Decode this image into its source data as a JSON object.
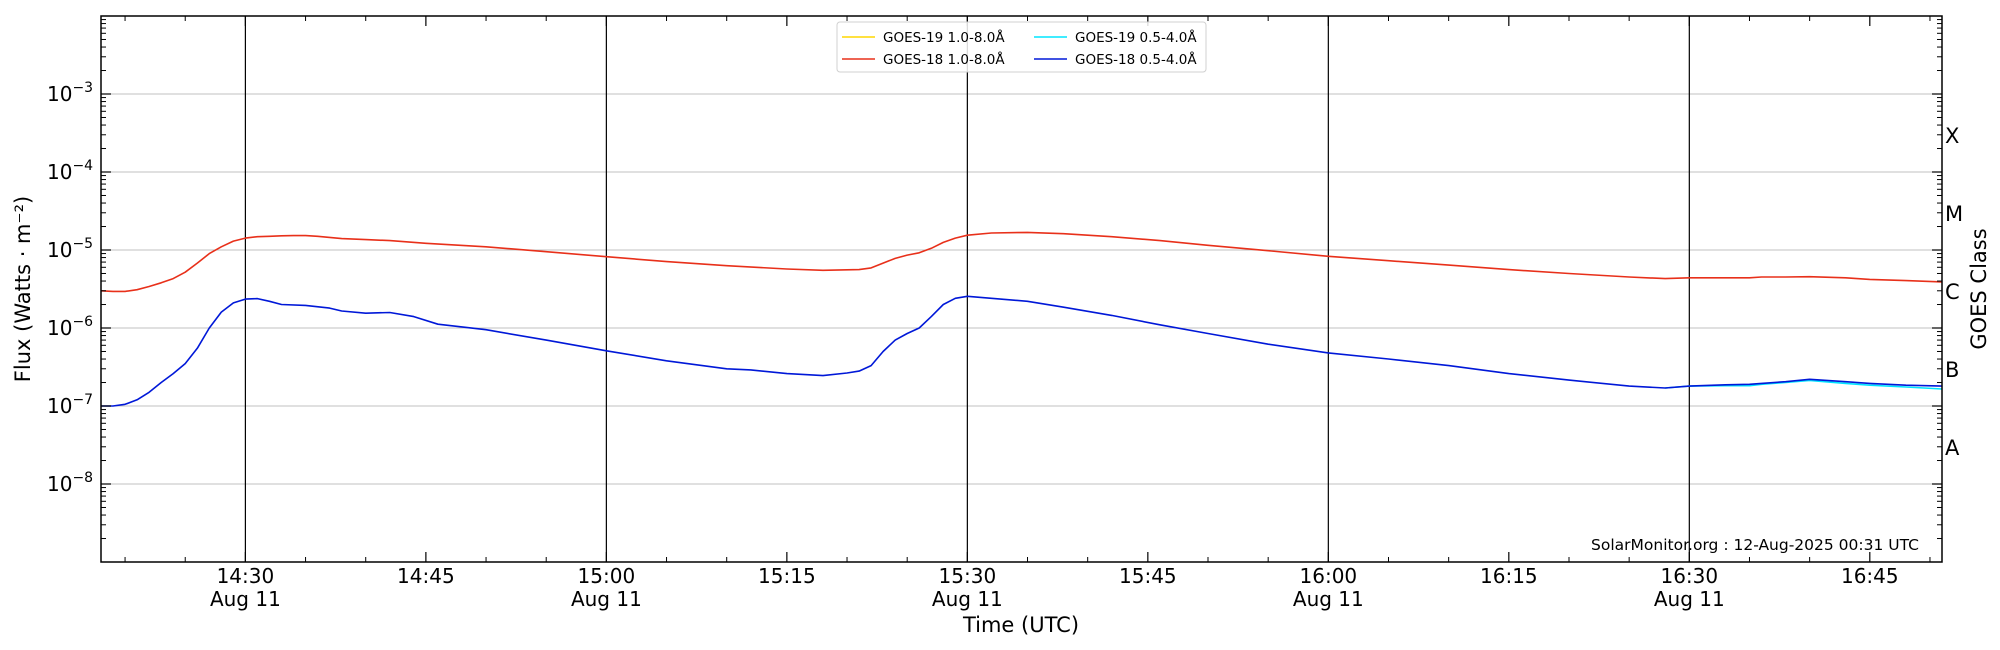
{
  "chart_data": {
    "type": "line",
    "xlabel": "Time (UTC)",
    "ylabel": "Flux (Watts · m⁻²)",
    "right_axis_label": "GOES Class",
    "y_scale": "log",
    "ylim": [
      1e-09,
      0.01
    ],
    "xlim": [
      "14:18",
      "16:51"
    ],
    "y_ticks": [
      {
        "value": 1e-08,
        "base": "10",
        "exp": "−8"
      },
      {
        "value": 1e-07,
        "base": "10",
        "exp": "−7"
      },
      {
        "value": 1e-06,
        "base": "10",
        "exp": "−6"
      },
      {
        "value": 1e-05,
        "base": "10",
        "exp": "−5"
      },
      {
        "value": 0.0001,
        "base": "10",
        "exp": "−4"
      },
      {
        "value": 0.001,
        "base": "10",
        "exp": "−3"
      }
    ],
    "x_ticks": [
      {
        "time": "14:30",
        "label": "14:30",
        "date": "Aug 11"
      },
      {
        "time": "14:45",
        "label": "14:45",
        "date": ""
      },
      {
        "time": "15:00",
        "label": "15:00",
        "date": "Aug 11"
      },
      {
        "time": "15:15",
        "label": "15:15",
        "date": ""
      },
      {
        "time": "15:30",
        "label": "15:30",
        "date": "Aug 11"
      },
      {
        "time": "15:45",
        "label": "15:45",
        "date": ""
      },
      {
        "time": "16:00",
        "label": "16:00",
        "date": "Aug 11"
      },
      {
        "time": "16:15",
        "label": "16:15",
        "date": ""
      },
      {
        "time": "16:30",
        "label": "16:30",
        "date": "Aug 11"
      },
      {
        "time": "16:45",
        "label": "16:45",
        "date": ""
      }
    ],
    "vertical_lines": [
      "14:30",
      "15:00",
      "15:30",
      "16:00",
      "16:30"
    ],
    "goes_classes": [
      {
        "label": "A",
        "flux": 3e-08
      },
      {
        "label": "B",
        "flux": 3e-07
      },
      {
        "label": "C",
        "flux": 3e-06
      },
      {
        "label": "M",
        "flux": 3e-05
      },
      {
        "label": "X",
        "flux": 0.0003
      }
    ],
    "legend": {
      "placement": "top-center",
      "columns": 2
    },
    "credit": "SolarMonitor.org : 12-Aug-2025 00:31 UTC",
    "series": [
      {
        "name": "GOES-19 1.0-8.0Å",
        "color": "#ffd700",
        "x": [
          "14:18",
          "16:51"
        ],
        "values": [
          null,
          null
        ]
      },
      {
        "name": "GOES-18 1.0-8.0Å",
        "color": "#e8301a",
        "x": [
          "14:18",
          "14:19",
          "14:20",
          "14:21",
          "14:22",
          "14:23",
          "14:24",
          "14:25",
          "14:26",
          "14:27",
          "14:28",
          "14:29",
          "14:30",
          "14:31",
          "14:32",
          "14:33",
          "14:34",
          "14:35",
          "14:36",
          "14:37",
          "14:38",
          "14:40",
          "14:42",
          "14:45",
          "14:50",
          "14:55",
          "15:00",
          "15:05",
          "15:10",
          "15:15",
          "15:18",
          "15:21",
          "15:22",
          "15:23",
          "15:24",
          "15:25",
          "15:26",
          "15:27",
          "15:28",
          "15:29",
          "15:30",
          "15:32",
          "15:35",
          "15:38",
          "15:42",
          "15:46",
          "15:50",
          "15:55",
          "16:00",
          "16:05",
          "16:10",
          "16:15",
          "16:20",
          "16:25",
          "16:28",
          "16:30",
          "16:33",
          "16:35",
          "16:36",
          "16:38",
          "16:40",
          "16:43",
          "16:45",
          "16:48",
          "16:51"
        ],
        "values": [
          3e-06,
          2.95e-06,
          2.95e-06,
          3.1e-06,
          3.4e-06,
          3.8e-06,
          4.3e-06,
          5.2e-06,
          6.8e-06,
          9e-06,
          1.1e-05,
          1.3e-05,
          1.42e-05,
          1.48e-05,
          1.5e-05,
          1.52e-05,
          1.53e-05,
          1.53e-05,
          1.5e-05,
          1.45e-05,
          1.4e-05,
          1.36e-05,
          1.32e-05,
          1.22e-05,
          1.1e-05,
          9.5e-06,
          8.2e-06,
          7.1e-06,
          6.3e-06,
          5.7e-06,
          5.5e-06,
          5.6e-06,
          5.9e-06,
          6.8e-06,
          7.8e-06,
          8.6e-06,
          9.2e-06,
          1.05e-05,
          1.25e-05,
          1.42e-05,
          1.55e-05,
          1.65e-05,
          1.68e-05,
          1.62e-05,
          1.48e-05,
          1.32e-05,
          1.15e-05,
          9.8e-06,
          8.3e-06,
          7.3e-06,
          6.4e-06,
          5.6e-06,
          5e-06,
          4.5e-06,
          4.3e-06,
          4.4e-06,
          4.4e-06,
          4.4e-06,
          4.5e-06,
          4.5e-06,
          4.55e-06,
          4.4e-06,
          4.2e-06,
          4.05e-06,
          3.9e-06
        ]
      },
      {
        "name": "GOES-19 0.5-4.0Å",
        "color": "#00e5ff",
        "x": [
          "16:28",
          "16:30",
          "16:33",
          "16:35",
          "16:36",
          "16:38",
          "16:40",
          "16:43",
          "16:45",
          "16:48",
          "16:51"
        ],
        "values": [
          1.7e-07,
          1.8e-07,
          1.82e-07,
          1.82e-07,
          1.9e-07,
          2e-07,
          2.12e-07,
          1.95e-07,
          1.85e-07,
          1.75e-07,
          1.65e-07
        ]
      },
      {
        "name": "GOES-18 0.5-4.0Å",
        "color": "#0018d8",
        "x": [
          "14:18",
          "14:19",
          "14:20",
          "14:21",
          "14:22",
          "14:23",
          "14:24",
          "14:25",
          "14:26",
          "14:27",
          "14:28",
          "14:29",
          "14:30",
          "14:31",
          "14:32",
          "14:33",
          "14:35",
          "14:37",
          "14:38",
          "14:40",
          "14:42",
          "14:44",
          "14:46",
          "14:50",
          "14:55",
          "15:00",
          "15:05",
          "15:10",
          "15:12",
          "15:15",
          "15:18",
          "15:20",
          "15:21",
          "15:22",
          "15:23",
          "15:24",
          "15:25",
          "15:26",
          "15:27",
          "15:28",
          "15:29",
          "15:30",
          "15:32",
          "15:35",
          "15:38",
          "15:42",
          "15:46",
          "15:50",
          "15:55",
          "16:00",
          "16:05",
          "16:10",
          "16:15",
          "16:20",
          "16:25",
          "16:28",
          "16:30",
          "16:33",
          "16:35",
          "16:36",
          "16:38",
          "16:40",
          "16:43",
          "16:45",
          "16:48",
          "16:51"
        ],
        "values": [
          1e-07,
          1e-07,
          1.05e-07,
          1.2e-07,
          1.5e-07,
          2e-07,
          2.6e-07,
          3.5e-07,
          5.5e-07,
          1e-06,
          1.6e-06,
          2.1e-06,
          2.35e-06,
          2.38e-06,
          2.2e-06,
          2e-06,
          1.95e-06,
          1.8e-06,
          1.65e-06,
          1.55e-06,
          1.58e-06,
          1.4e-06,
          1.12e-06,
          9.5e-07,
          7e-07,
          5.1e-07,
          3.8e-07,
          3e-07,
          2.9e-07,
          2.6e-07,
          2.45e-07,
          2.65e-07,
          2.8e-07,
          3.3e-07,
          5e-07,
          7e-07,
          8.5e-07,
          1e-06,
          1.4e-06,
          2e-06,
          2.4e-06,
          2.55e-06,
          2.4e-06,
          2.2e-06,
          1.85e-06,
          1.45e-06,
          1.1e-06,
          8.5e-07,
          6.2e-07,
          4.8e-07,
          4e-07,
          3.3e-07,
          2.6e-07,
          2.15e-07,
          1.8e-07,
          1.7e-07,
          1.8e-07,
          1.87e-07,
          1.9e-07,
          1.95e-07,
          2.05e-07,
          2.2e-07,
          2.05e-07,
          1.95e-07,
          1.85e-07,
          1.8e-07
        ]
      }
    ]
  }
}
